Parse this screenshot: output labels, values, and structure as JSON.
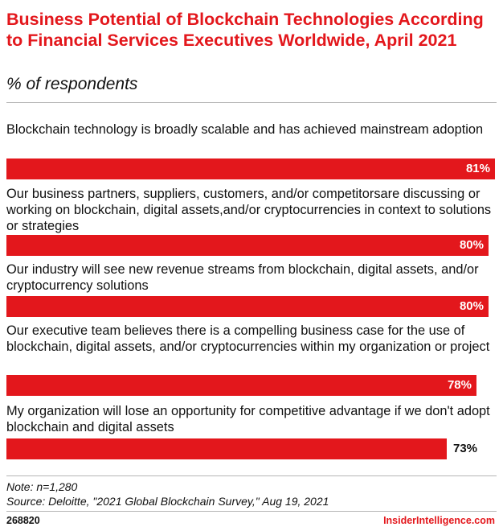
{
  "chart_data": {
    "type": "bar",
    "orientation": "horizontal",
    "title": "Business Potential of Blockchain Technologies According to Financial Services Executives Worldwide, April 2021",
    "subtitle": "% of respondents",
    "categories": [
      "Blockchain technology is broadly scalable and has achieved mainstream adoption",
      "Our business partners, suppliers, customers, and/or competitorsare discussing or working on blockchain, digital assets,and/or cryptocurrencies in context to solutions or strategies",
      "Our industry will see new revenue streams from blockchain, digital assets, and/or cryptocurrency solutions",
      "Our executive team believes there is a compelling business case for the use of blockchain, digital assets, and/or cryptocurrencies within my organization or project",
      "My organization will lose an opportunity for competitive advantage if we don't adopt blockchain and digital assets"
    ],
    "values": [
      81,
      80,
      80,
      78,
      73
    ],
    "value_labels": [
      "81%",
      "80%",
      "80%",
      "78%",
      "73%"
    ],
    "bar_color": "#e3171c"
  },
  "notes": {
    "note": "Note: n=1,280",
    "source": "Source: Deloitte, \"2021 Global Blockchain Survey,\" Aug 19, 2021"
  },
  "footer": {
    "chart_id": "268820",
    "brand": "InsiderIntelligence.com"
  }
}
